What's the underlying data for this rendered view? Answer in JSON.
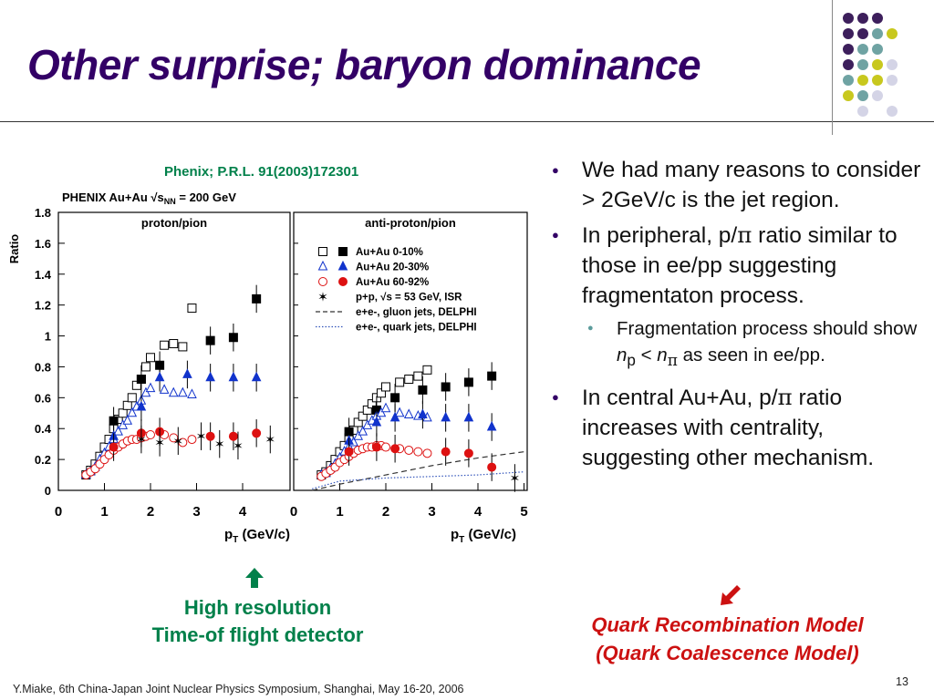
{
  "slide": {
    "title": "Other surprise; baryon dominance",
    "citation": "Phenix; P.R.L. 91(2003)172301",
    "footer": "Y.Miake, 6th China-Japan Joint Nuclear Physics Symposium, Shanghai, May 16-20, 2006",
    "page_number": "13"
  },
  "bullets": {
    "b1": "We had many reasons to consider > 2GeV/c is the jet region.",
    "b2_pre": "In peripheral, p/",
    "b2_sym": "π",
    "b2_post": " ratio similar to those in ee/pp suggesting fragmentaton process.",
    "sub_pre": "Fragmentation process should show ",
    "sub_n": "n",
    "sub_p": "p",
    "sub_lt": " < ",
    "sub_n2": "n",
    "sub_pi": "π",
    "sub_post": " as seen in ee/pp.",
    "b3_pre": "In central Au+Au, p/",
    "b3_sym": "π",
    "b3_post": " ratio increases with centrality, suggesting other mechanism."
  },
  "annotations": {
    "detector_line1": "High resolution",
    "detector_line2": "Time-of flight detector",
    "qrm_line1": "Quark Recombination Model",
    "qrm_line2": "(Quark Coalescence Model)"
  },
  "colors": {
    "title": "#330066",
    "green": "#00804a",
    "red": "#cc1111",
    "dot_purple": "#3d1f5c",
    "dot_teal": "#6fa3a3",
    "dot_yellow": "#c8c81e",
    "dot_lavender": "#d4d4e6"
  },
  "chart_data": {
    "type": "scatter",
    "header": "PHENIX Au+Au",
    "energy_label": "√s",
    "energy_sub": "NN",
    "energy_value": "= 200 GeV",
    "ylabel": "Ratio",
    "xlabel_left": "p",
    "xlabel_sub": "T",
    "xlabel_unit": " (GeV/c)",
    "ylim": [
      0,
      1.8
    ],
    "xlim": [
      0,
      5
    ],
    "yticks": [
      "0",
      "0.2",
      "0.4",
      "0.6",
      "0.8",
      "1",
      "1.2",
      "1.4",
      "1.6",
      "1.8"
    ],
    "xticks_left": [
      "0",
      "1",
      "2",
      "3",
      "4"
    ],
    "xticks_right": [
      "0",
      "1",
      "2",
      "3",
      "4",
      "5"
    ],
    "panels": [
      {
        "label": "proton/pion",
        "series": [
          {
            "name": "Au+Au 0-10%",
            "marker": "square",
            "x": [
              0.6,
              0.7,
              0.8,
              0.9,
              1.0,
              1.1,
              1.2,
              1.3,
              1.4,
              1.5,
              1.6,
              1.7,
              1.8,
              1.9,
              2.0,
              2.3,
              2.5,
              2.7,
              2.9
            ],
            "y": [
              0.1,
              0.13,
              0.17,
              0.22,
              0.28,
              0.33,
              0.4,
              0.46,
              0.5,
              0.55,
              0.6,
              0.68,
              0.72,
              0.8,
              0.86,
              0.94,
              0.95,
              0.93,
              1.18
            ]
          },
          {
            "name": "Au+Au 0-10% (TOF)",
            "marker": "square-filled",
            "x": [
              1.2,
              1.8,
              2.2,
              3.3,
              3.8,
              4.3
            ],
            "y": [
              0.45,
              0.72,
              0.81,
              0.97,
              0.99,
              1.24
            ]
          },
          {
            "name": "Au+Au 20-30%",
            "marker": "triangle",
            "x": [
              0.6,
              0.7,
              0.8,
              0.9,
              1.0,
              1.1,
              1.2,
              1.3,
              1.4,
              1.5,
              1.6,
              1.7,
              1.8,
              1.9,
              2.0,
              2.3,
              2.5,
              2.7,
              2.9
            ],
            "y": [
              0.1,
              0.12,
              0.15,
              0.2,
              0.24,
              0.28,
              0.33,
              0.38,
              0.42,
              0.45,
              0.5,
              0.54,
              0.58,
              0.63,
              0.66,
              0.65,
              0.63,
              0.63,
              0.62
            ]
          },
          {
            "name": "Au+Au 20-30% (TOF)",
            "marker": "triangle-filled",
            "x": [
              1.2,
              1.8,
              2.2,
              2.8,
              3.3,
              3.8,
              4.3
            ],
            "y": [
              0.35,
              0.54,
              0.73,
              0.75,
              0.73,
              0.73,
              0.73
            ]
          },
          {
            "name": "Au+Au 60-92%",
            "marker": "circle",
            "x": [
              0.6,
              0.7,
              0.8,
              0.9,
              1.0,
              1.1,
              1.2,
              1.3,
              1.4,
              1.5,
              1.6,
              1.7,
              1.8,
              1.9,
              2.0,
              2.3,
              2.5,
              2.7,
              2.9
            ],
            "y": [
              0.1,
              0.12,
              0.14,
              0.17,
              0.2,
              0.23,
              0.26,
              0.28,
              0.3,
              0.32,
              0.33,
              0.33,
              0.34,
              0.35,
              0.36,
              0.36,
              0.34,
              0.31,
              0.33
            ]
          },
          {
            "name": "Au+Au 60-92% (TOF)",
            "marker": "circle-filled",
            "x": [
              1.2,
              1.8,
              2.2,
              3.3,
              3.8,
              4.3
            ],
            "y": [
              0.28,
              0.37,
              0.38,
              0.35,
              0.35,
              0.37
            ]
          },
          {
            "name": "p+p, √s = 53 GeV, ISR",
            "marker": "star",
            "x": [
              1.8,
              2.2,
              2.6,
              3.1,
              3.5,
              3.9,
              4.6
            ],
            "y": [
              0.33,
              0.31,
              0.32,
              0.35,
              0.3,
              0.29,
              0.33
            ]
          }
        ]
      },
      {
        "label": "anti-proton/pion",
        "series": [
          {
            "name": "Au+Au 0-10%",
            "marker": "square",
            "x": [
              0.6,
              0.7,
              0.8,
              0.9,
              1.0,
              1.1,
              1.2,
              1.3,
              1.4,
              1.5,
              1.6,
              1.7,
              1.8,
              1.9,
              2.0,
              2.3,
              2.5,
              2.7,
              2.9
            ],
            "y": [
              0.1,
              0.12,
              0.16,
              0.2,
              0.25,
              0.29,
              0.34,
              0.39,
              0.44,
              0.48,
              0.52,
              0.56,
              0.6,
              0.63,
              0.67,
              0.7,
              0.72,
              0.74,
              0.78
            ]
          },
          {
            "name": "Au+Au 0-10% (TOF)",
            "marker": "square-filled",
            "x": [
              1.2,
              1.8,
              2.2,
              2.8,
              3.3,
              3.8,
              4.3
            ],
            "y": [
              0.38,
              0.52,
              0.6,
              0.65,
              0.67,
              0.7,
              0.74
            ]
          },
          {
            "name": "Au+Au 20-30%",
            "marker": "triangle",
            "x": [
              0.6,
              0.7,
              0.8,
              0.9,
              1.0,
              1.1,
              1.2,
              1.3,
              1.4,
              1.5,
              1.6,
              1.7,
              1.8,
              1.9,
              2.0,
              2.3,
              2.5,
              2.7,
              2.9
            ],
            "y": [
              0.1,
              0.11,
              0.14,
              0.17,
              0.21,
              0.25,
              0.28,
              0.31,
              0.35,
              0.38,
              0.42,
              0.45,
              0.48,
              0.5,
              0.53,
              0.5,
              0.49,
              0.48,
              0.47
            ]
          },
          {
            "name": "Au+Au 20-30% (TOF)",
            "marker": "triangle-filled",
            "x": [
              1.2,
              1.8,
              2.2,
              2.8,
              3.3,
              3.8,
              4.3
            ],
            "y": [
              0.32,
              0.44,
              0.47,
              0.49,
              0.47,
              0.47,
              0.41
            ]
          },
          {
            "name": "Au+Au 60-92%",
            "marker": "circle",
            "x": [
              0.6,
              0.7,
              0.8,
              0.9,
              1.0,
              1.1,
              1.2,
              1.3,
              1.4,
              1.5,
              1.6,
              1.7,
              1.8,
              1.9,
              2.0,
              2.3,
              2.5,
              2.7,
              2.9
            ],
            "y": [
              0.09,
              0.11,
              0.13,
              0.15,
              0.18,
              0.2,
              0.22,
              0.24,
              0.26,
              0.27,
              0.28,
              0.28,
              0.29,
              0.29,
              0.28,
              0.27,
              0.26,
              0.25,
              0.24
            ]
          },
          {
            "name": "Au+Au 60-92% (TOF)",
            "marker": "circle-filled",
            "x": [
              1.2,
              1.8,
              2.2,
              3.3,
              3.8,
              4.3
            ],
            "y": [
              0.25,
              0.28,
              0.27,
              0.25,
              0.24,
              0.15
            ]
          },
          {
            "name": "p+p, √s = 53 GeV, ISR",
            "marker": "star",
            "x": [
              4.8
            ],
            "y": [
              0.08
            ]
          }
        ],
        "curves": [
          {
            "name": "e+e-, gluon jets, DELPHI",
            "style": "dashed",
            "x": [
              0.4,
              1,
              2,
              3,
              4,
              5
            ],
            "y": [
              0.0,
              0.04,
              0.1,
              0.16,
              0.21,
              0.25
            ]
          },
          {
            "name": "e+e-, quark jets, DELPHI",
            "style": "dotted",
            "x": [
              0.4,
              1,
              2,
              3,
              4,
              5
            ],
            "y": [
              0.01,
              0.06,
              0.08,
              0.09,
              0.1,
              0.12
            ]
          }
        ]
      }
    ],
    "legend": [
      "Au+Au 0-10%",
      "Au+Au 20-30%",
      "Au+Au 60-92%",
      "p+p, √s = 53 GeV, ISR",
      "e+e-, gluon jets, DELPHI",
      "e+e-, quark jets, DELPHI"
    ]
  }
}
